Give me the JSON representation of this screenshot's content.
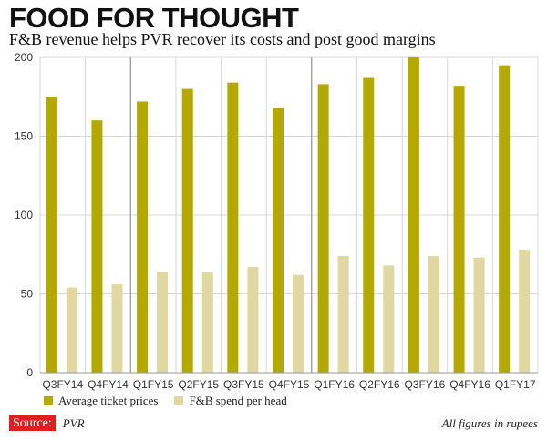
{
  "title": "FOOD FOR THOUGHT",
  "subtitle": "F&B revenue helps PVR recover its costs and post good margins",
  "chart_data": {
    "type": "bar",
    "categories": [
      "Q3FY14",
      "Q4FY14",
      "Q1FY15",
      "Q2FY15",
      "Q3FY15",
      "Q4FY15",
      "Q1FY16",
      "Q2FY16",
      "Q3FY16",
      "Q4FY16",
      "Q1FY17"
    ],
    "series": [
      {
        "name": "Average ticket prices",
        "values": [
          175,
          160,
          172,
          180,
          184,
          168,
          183,
          187,
          200,
          182,
          195
        ]
      },
      {
        "name": "F&B spend per head",
        "values": [
          54,
          56,
          64,
          64,
          67,
          62,
          74,
          68,
          74,
          73,
          78
        ]
      }
    ],
    "ylim": [
      0,
      200
    ],
    "yticks": [
      0,
      50,
      100,
      150,
      200
    ],
    "grid": true,
    "legend_position": "bottom-left"
  },
  "colors": {
    "ticket": "#b5a800",
    "fnb": "#e0d8a0",
    "grid": "#d8d8d8",
    "separator": "#888888",
    "source_badge": "#e02020"
  },
  "footer": {
    "source_label": "Source:",
    "source_value": "PVR",
    "note": "All figures in rupees"
  }
}
